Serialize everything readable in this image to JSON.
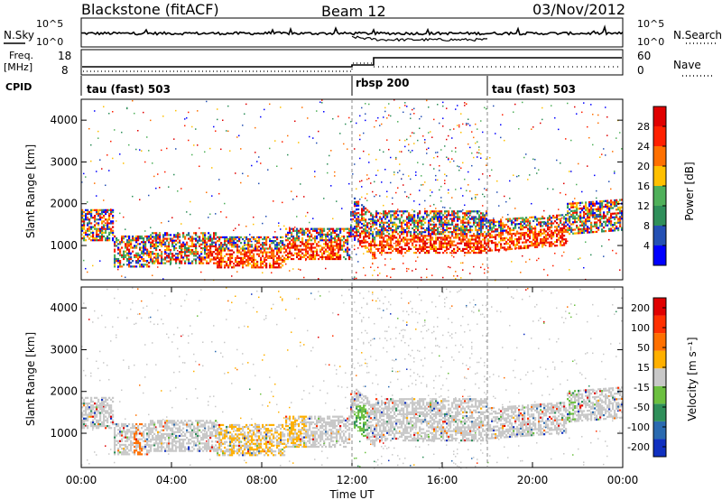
{
  "header": {
    "station": "Blackstone (fitACF)",
    "beam": "Beam 12",
    "date": "03/Nov/2012"
  },
  "noise_panel": {
    "left_label": "N.Sky",
    "right_label": "N.Search",
    "tick_top": "10^5",
    "tick_bottom": "10^0",
    "right_tick_top": "10^5",
    "right_tick_bottom": "10^0"
  },
  "freq_panel": {
    "left_label_line1": "Freq.",
    "left_label_line2": "[MHz]",
    "left_ticks": [
      "18",
      "8"
    ],
    "right_label": "Nave",
    "right_ticks": [
      "60",
      "0"
    ]
  },
  "cpid_panel": {
    "label": "CPID",
    "segments": [
      {
        "name": "tau (fast) 503",
        "start_h": 0,
        "end_h": 12
      },
      {
        "name": "rbsp 200",
        "start_h": 12,
        "end_h": 18
      },
      {
        "name": "tau (fast) 503",
        "start_h": 18,
        "end_h": 24
      }
    ]
  },
  "chart_data": [
    {
      "type": "heatmap",
      "title": "Power",
      "ylabel": "Slant Range [km]",
      "yticks": [
        "1000",
        "2000",
        "3000",
        "4000"
      ],
      "ylim": [
        180,
        4500
      ],
      "colorbar_label": "Power [dB]",
      "colorbar_ticks": [
        "4",
        "8",
        "12",
        "16",
        "20",
        "24",
        "28"
      ],
      "colorbar_colors": [
        "#0000ff",
        "#2450b4",
        "#2f8f5a",
        "#4fb05a",
        "#ffc000",
        "#ff7000",
        "#ff2000",
        "#e00000"
      ]
    },
    {
      "type": "heatmap",
      "title": "Velocity",
      "ylabel": "Slant Range [km]",
      "yticks": [
        "1000",
        "2000",
        "3000",
        "4000"
      ],
      "ylim": [
        180,
        4500
      ],
      "colorbar_label": "Velocity [m s⁻¹]",
      "colorbar_ticks": [
        "200",
        "100",
        "50",
        "15",
        "-15",
        "-50",
        "-100",
        "-200"
      ],
      "colorbar_colors": [
        "#1030c0",
        "#2a6ab0",
        "#2f8f5a",
        "#6cc040",
        "#c8c8c8",
        "#ffb000",
        "#ff7000",
        "#ff3000",
        "#e00000"
      ]
    }
  ],
  "x_axis": {
    "ticks": [
      "00:00",
      "04:00",
      "08:00",
      "12:00",
      "16:00",
      "20:00",
      "00:00"
    ],
    "label": "Time UT"
  }
}
